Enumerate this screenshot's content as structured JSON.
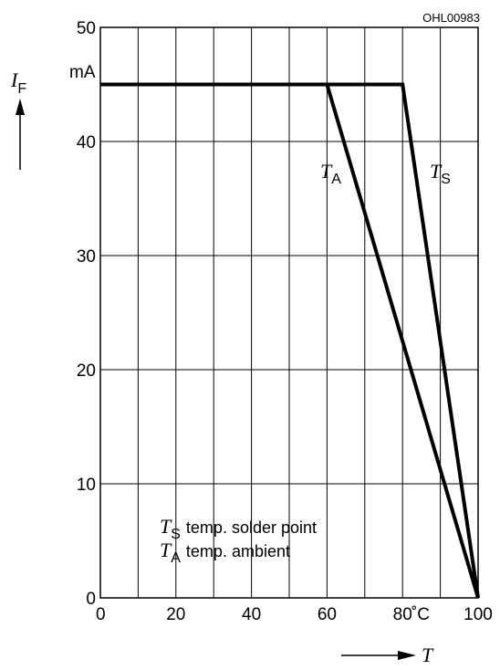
{
  "figure_id": "OHL00983",
  "chart_data": {
    "type": "line",
    "xlim": [
      0,
      100
    ],
    "ylim": [
      0,
      50
    ],
    "x_ticks": [
      "0",
      "20",
      "40",
      "60",
      "80",
      "100"
    ],
    "y_ticks": [
      "0",
      "10",
      "20",
      "30",
      "40",
      "50"
    ],
    "y_unit": "mA",
    "x_unit": "˚C",
    "ylabel": {
      "symbol": "I",
      "subscript": "F"
    },
    "xlabel": {
      "symbol": "T"
    },
    "grid": true,
    "series": [
      {
        "name": "T_A",
        "label_symbol": "T",
        "label_subscript": "A",
        "x": [
          0,
          60,
          100
        ],
        "y": [
          45,
          45,
          0
        ]
      },
      {
        "name": "T_S",
        "label_symbol": "T",
        "label_subscript": "S",
        "x": [
          0,
          80,
          100
        ],
        "y": [
          45,
          45,
          0
        ]
      }
    ],
    "legend": [
      {
        "symbol": "T",
        "subscript": "S",
        "text": "temp. solder point"
      },
      {
        "symbol": "T",
        "subscript": "A",
        "text": "temp. ambient"
      }
    ]
  }
}
